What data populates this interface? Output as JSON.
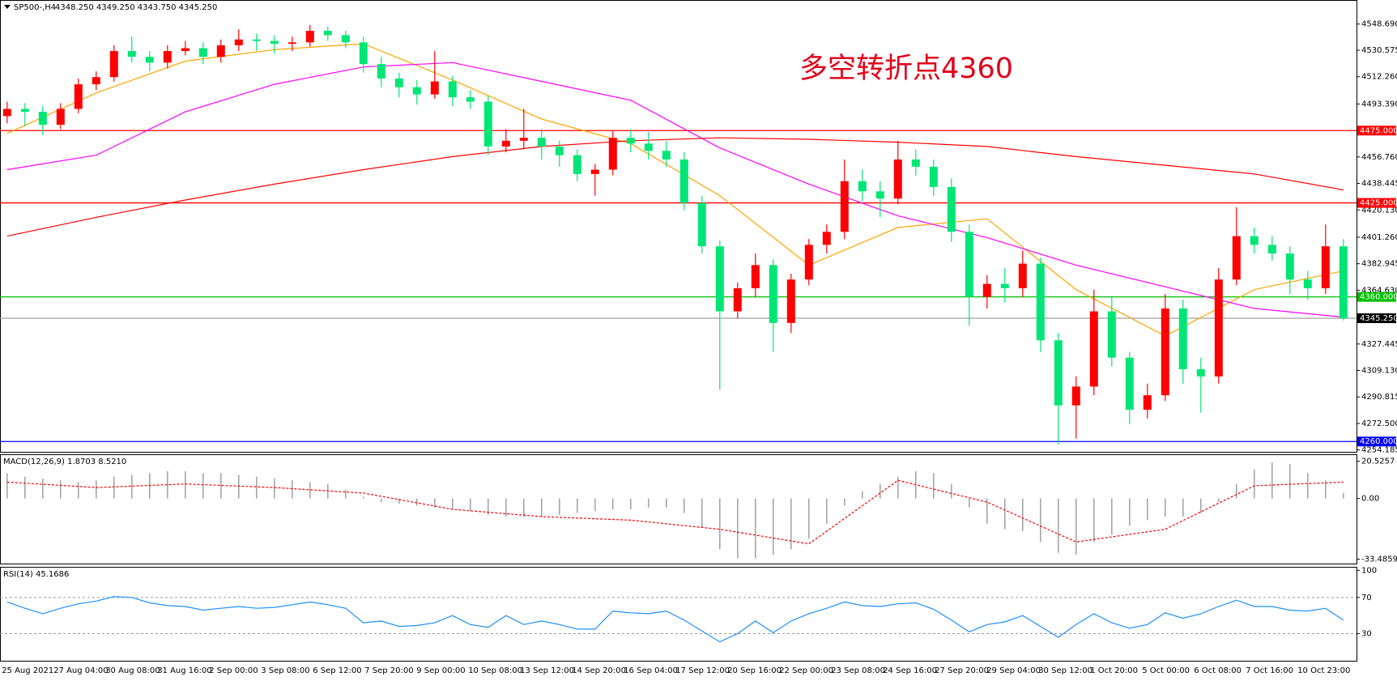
{
  "chart_data": {
    "type": "candlestick",
    "symbol": "SP500-,H4",
    "quote": "4348.250 4349.250 4343.750 4345.250",
    "annotation": "多空转折点4360",
    "ylim": [
      4252.3,
      4565.3
    ],
    "yticks": [
      {
        "value": 4548.69,
        "label": "4548.690"
      },
      {
        "value": 4530.575,
        "label": "4530.575"
      },
      {
        "value": 4512.26,
        "label": "4512.260"
      },
      {
        "value": 4493.39,
        "label": "4493.390"
      },
      {
        "value": 4456.76,
        "label": "4456.760"
      },
      {
        "value": 4438.445,
        "label": "4438.445"
      },
      {
        "value": 4420.13,
        "label": "4420.130"
      },
      {
        "value": 4401.26,
        "label": "4401.260"
      },
      {
        "value": 4382.945,
        "label": "4382.945"
      },
      {
        "value": 4364.63,
        "label": "4364.630"
      },
      {
        "value": 4327.445,
        "label": "4327.445"
      },
      {
        "value": 4309.13,
        "label": "4309.130"
      },
      {
        "value": 4290.815,
        "label": "4290.815"
      },
      {
        "value": 4272.5,
        "label": "4272.500"
      },
      {
        "value": 4254.185,
        "label": "4254.185"
      }
    ],
    "up_color": "#ff0000",
    "down_color": "#00e676",
    "candles": [
      [
        4485,
        4495,
        4480,
        4490
      ],
      [
        4490,
        4494,
        4478,
        4488
      ],
      [
        4488,
        4492,
        4472,
        4479
      ],
      [
        4479,
        4494,
        4476,
        4490
      ],
      [
        4490,
        4511,
        4487,
        4507
      ],
      [
        4507,
        4516,
        4503,
        4512
      ],
      [
        4512,
        4534,
        4509,
        4530
      ],
      [
        4530,
        4540,
        4522,
        4526
      ],
      [
        4526,
        4530,
        4516,
        4522
      ],
      [
        4522,
        4534,
        4518,
        4530
      ],
      [
        4530,
        4537,
        4527,
        4532
      ],
      [
        4532,
        4536,
        4521,
        4526
      ],
      [
        4526,
        4538,
        4522,
        4534
      ],
      [
        4534,
        4545,
        4530,
        4538
      ],
      [
        4538,
        4542,
        4530,
        4537
      ],
      [
        4537,
        4541,
        4528,
        4535
      ],
      [
        4535,
        4540,
        4530,
        4536
      ],
      [
        4536,
        4548,
        4533,
        4544
      ],
      [
        4544,
        4547,
        4537,
        4541
      ],
      [
        4541,
        4544,
        4532,
        4536
      ],
      [
        4536,
        4540,
        4515,
        4521
      ],
      [
        4521,
        4526,
        4505,
        4511
      ],
      [
        4511,
        4515,
        4498,
        4505
      ],
      [
        4505,
        4510,
        4493,
        4500
      ],
      [
        4500,
        4530,
        4497,
        4509
      ],
      [
        4509,
        4513,
        4492,
        4498
      ],
      [
        4498,
        4503,
        4490,
        4495
      ],
      [
        4495,
        4499,
        4458,
        4464
      ],
      [
        4464,
        4476,
        4460,
        4468
      ],
      [
        4468,
        4490,
        4462,
        4470
      ],
      [
        4470,
        4476,
        4455,
        4464
      ],
      [
        4464,
        4468,
        4450,
        4458
      ],
      [
        4458,
        4462,
        4440,
        4445
      ],
      [
        4445,
        4452,
        4430,
        4448
      ],
      [
        4448,
        4475,
        4444,
        4470
      ],
      [
        4470,
        4476,
        4460,
        4466
      ],
      [
        4466,
        4474,
        4455,
        4461
      ],
      [
        4461,
        4468,
        4450,
        4455
      ],
      [
        4455,
        4460,
        4420,
        4425
      ],
      [
        4425,
        4430,
        4390,
        4395
      ],
      [
        4395,
        4399,
        4296,
        4350
      ],
      [
        4350,
        4370,
        4345,
        4366
      ],
      [
        4366,
        4390,
        4360,
        4382
      ],
      [
        4382,
        4386,
        4322,
        4342
      ],
      [
        4342,
        4376,
        4335,
        4372
      ],
      [
        4372,
        4400,
        4368,
        4396
      ],
      [
        4396,
        4410,
        4390,
        4405
      ],
      [
        4405,
        4455,
        4400,
        4440
      ],
      [
        4440,
        4448,
        4426,
        4433
      ],
      [
        4433,
        4440,
        4415,
        4428
      ],
      [
        4428,
        4468,
        4424,
        4455
      ],
      [
        4455,
        4462,
        4444,
        4450
      ],
      [
        4450,
        4455,
        4430,
        4436
      ],
      [
        4436,
        4442,
        4398,
        4405
      ],
      [
        4405,
        4410,
        4340,
        4360
      ],
      [
        4360,
        4375,
        4352,
        4369
      ],
      [
        4369,
        4380,
        4356,
        4366
      ],
      [
        4366,
        4392,
        4360,
        4383
      ],
      [
        4383,
        4387,
        4322,
        4330
      ],
      [
        4330,
        4335,
        4258,
        4285
      ],
      [
        4285,
        4305,
        4262,
        4298
      ],
      [
        4298,
        4365,
        4292,
        4350
      ],
      [
        4350,
        4360,
        4312,
        4318
      ],
      [
        4318,
        4322,
        4272,
        4282
      ],
      [
        4282,
        4300,
        4276,
        4292
      ],
      [
        4292,
        4362,
        4288,
        4352
      ],
      [
        4352,
        4358,
        4300,
        4310
      ],
      [
        4310,
        4318,
        4280,
        4305
      ],
      [
        4305,
        4380,
        4300,
        4372
      ],
      [
        4372,
        4422,
        4368,
        4402
      ],
      [
        4402,
        4408,
        4390,
        4396
      ],
      [
        4396,
        4402,
        4385,
        4390
      ],
      [
        4390,
        4395,
        4362,
        4372
      ],
      [
        4372,
        4378,
        4358,
        4366
      ],
      [
        4366,
        4410,
        4362,
        4395
      ],
      [
        4395,
        4400,
        4343.75,
        4345.25
      ]
    ],
    "lines": [
      {
        "color": "#ffa500",
        "values": [
          4473,
          4501,
          4523,
          4531,
          4535,
          4510,
          4483,
          4466,
          4430,
          4382,
          4408,
          4414,
          4365,
          4333,
          4365,
          4378
        ]
      },
      {
        "color": "#ff00ff",
        "values": [
          4448,
          4458,
          4488,
          4507,
          4519,
          4522,
          4509,
          4496,
          4463,
          4438,
          4416,
          4401,
          4382,
          4367,
          4352,
          4346
        ]
      },
      {
        "color": "#ff0000",
        "values": [
          4402,
          4415,
          4427,
          4438,
          4448,
          4457,
          4464,
          4468,
          4470,
          4469,
          4467,
          4464,
          4457,
          4451,
          4445,
          4434
        ]
      }
    ],
    "levels": [
      {
        "value": 4475,
        "label": "4475.000",
        "color": "#ff0000",
        "label_background": "#ff0000"
      },
      {
        "value": 4425,
        "label": "4425.000",
        "color": "#ff0000",
        "label_background": "#ff0000"
      },
      {
        "value": 4360,
        "label": "4360.000",
        "color": "#00c000",
        "label_background": "#00c000"
      },
      {
        "value": 4260,
        "label": "4260.000",
        "color": "#0000ff",
        "label_background": "#0000ff"
      },
      {
        "value": 4345.25,
        "label": "4345.250",
        "color": "#a0a0a0",
        "label_background": "#000000"
      }
    ],
    "dates": [
      "25 Aug 2021",
      "27 Aug 04:00",
      "30 Aug 08:00",
      "31 Aug 16:00",
      "2 Sep 00:00",
      "3 Sep 08:00",
      "6 Sep 12:00",
      "7 Sep 20:00",
      "9 Sep 00:00",
      "10 Sep 08:00",
      "13 Sep 12:00",
      "14 Sep 20:00",
      "16 Sep 04:00",
      "17 Sep 12:00",
      "20 Sep 16:00",
      "22 Sep 00:00",
      "23 Sep 08:00",
      "24 Sep 16:00",
      "27 Sep 20:00",
      "29 Sep 04:00",
      "30 Sep 12:00",
      "1 Oct 20:00",
      "5 Oct 00:00",
      "6 Oct 08:00",
      "7 Oct 16:00",
      "10 Oct 23:00"
    ],
    "macd": {
      "title": "MACD(12,26,9) 1.8703 8.5210",
      "ylim": [
        -35.92,
        23.93
      ],
      "yticks": [
        20.5257,
        {
          "value": 0,
          "label": "0.00"
        },
        -33.4859
      ],
      "hist_color": "#a0a0a0",
      "signal_color": "#ff0000",
      "histogram": [
        14,
        12,
        11,
        10,
        9,
        10,
        12,
        13,
        14,
        15,
        15,
        14,
        14,
        13,
        12,
        11,
        10,
        9,
        8,
        5,
        1,
        -2,
        -3,
        -4,
        -5,
        -6,
        -7,
        -9,
        -10,
        -10,
        -10,
        -9,
        -8,
        -7,
        -6,
        -6,
        -5,
        -5,
        -8,
        -16,
        -28,
        -33,
        -33,
        -31,
        -28,
        -22,
        -14,
        -4,
        4,
        8,
        12,
        15,
        14,
        8,
        -5,
        -14,
        -17,
        -18,
        -24,
        -30,
        -31,
        -24,
        -20,
        -15,
        -12,
        -10,
        -10,
        -8,
        -2,
        8,
        16,
        20,
        19,
        14,
        10,
        3
      ],
      "signal": [
        9,
        6,
        8,
        6,
        3,
        -6,
        -10,
        -12,
        -17,
        -25,
        10,
        -2,
        -24,
        -17,
        7,
        9
      ]
    },
    "rsi": {
      "title": "RSI(14) 45.1686",
      "ylim": [
        0,
        103
      ],
      "yticks": [
        100,
        70,
        30
      ],
      "levels": [
        70,
        30
      ],
      "color": "#1e90ff",
      "values": [
        65,
        58,
        52,
        58,
        63,
        66,
        71,
        70,
        64,
        61,
        60,
        56,
        58,
        60,
        58,
        59,
        62,
        65,
        62,
        58,
        42,
        44,
        38,
        39,
        42,
        50,
        40,
        37,
        50,
        40,
        44,
        40,
        35,
        35,
        55,
        53,
        52,
        55,
        45,
        33,
        21,
        30,
        44,
        31,
        44,
        52,
        58,
        65,
        61,
        60,
        63,
        64,
        57,
        45,
        32,
        40,
        43,
        50,
        38,
        26,
        40,
        52,
        42,
        36,
        40,
        53,
        47,
        52,
        60,
        67,
        60,
        60,
        56,
        55,
        58,
        45
      ]
    }
  }
}
